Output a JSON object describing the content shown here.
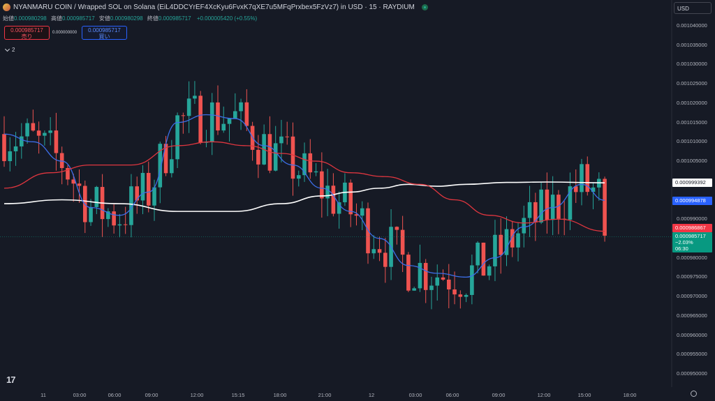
{
  "header": {
    "title": "NYANMARU COIN / Wrapped SOL on Solana (EiL4DDCYrEF4XcKyu6FvxK7qXE7u5MFqPrxbex5FzVz7) in USD · 15 · RAYDIUM",
    "ohlc": {
      "open_label": "始値",
      "open": "0.000980298",
      "high_label": "高値",
      "high": "0.000985717",
      "low_label": "安値",
      "low": "0.000980298",
      "close_label": "終値",
      "close": "0.000985717",
      "change": "+0.000005420 (+0.55%)"
    }
  },
  "trade": {
    "sell_price": "0.000985717",
    "sell_label": "売り",
    "spread": "0.000000000",
    "buy_price": "0.000985717",
    "buy_label": "買い"
  },
  "indicators_toggle": {
    "count": "2"
  },
  "currency": "USD",
  "price_tags": {
    "white": "0.000999392",
    "blue": "0.000994878",
    "red": "0.000986867",
    "last_price": "0.000985717",
    "last_change": "−2.03%",
    "countdown": "06:30"
  },
  "colors": {
    "up": "#26a69a",
    "down": "#ef5350",
    "ma_white": "#ffffff",
    "ma_blue": "#3d6ee8",
    "ma_red": "#e0363f"
  },
  "chart_data": {
    "type": "line",
    "subtype": "candlestick",
    "ylim": [
      0.00095,
      0.001043
    ],
    "y_ticks": [
      "0.001040000",
      "0.001035000",
      "0.001030000",
      "0.001025000",
      "0.001020000",
      "0.001015000",
      "0.001010000",
      "0.001005000",
      "0.000999392",
      "0.000994878",
      "0.000990000",
      "0.000986867",
      "0.000985717",
      "0.000980000",
      "0.000975000",
      "0.000970000",
      "0.000965000",
      "0.000960000",
      "0.000955000",
      "0.000950000"
    ],
    "x_ticks": [
      "11",
      "03:00",
      "06:00",
      "09:00",
      "12:00",
      "15:15",
      "18:00",
      "21:00",
      "12",
      "03:00",
      "06:00",
      "09:00",
      "12:00",
      "15:00",
      "18:00"
    ],
    "series": [
      {
        "name": "",
        "color": "#ffffff",
        "x": [
          0,
          10,
          20,
          30,
          40,
          48,
          55,
          60,
          65,
          70,
          75,
          80,
          87,
          94,
          104
        ],
        "values": [
          0.000994,
          0.000995,
          0.000994,
          0.000992,
          0.000992,
          0.000994,
          0.000996,
          0.000997,
          0.000998,
          0.000999,
          0.0009985,
          0.000999,
          0.0009995,
          0.0009996,
          0.000999392
        ]
      },
      {
        "name": "",
        "color": "#3d6ee8",
        "x": [
          0,
          5,
          10,
          15,
          20,
          25,
          30,
          35,
          40,
          45,
          50,
          55,
          60,
          65,
          70,
          75,
          80,
          85,
          90,
          95,
          100,
          104
        ],
        "values": [
          0.001012,
          0.00101,
          0.001005,
          0.000993,
          0.000991,
          0.000997,
          0.001015,
          0.001017,
          0.001016,
          0.001009,
          0.001004,
          0.000998,
          0.000992,
          0.000985,
          0.000978,
          0.000976,
          0.000975,
          0.00098,
          0.000988,
          0.000993,
          0.000999,
          0.000994878
        ]
      },
      {
        "name": "",
        "color": "#e0363f",
        "x": [
          0,
          8,
          15,
          22,
          30,
          36,
          42,
          48,
          54,
          60,
          66,
          72,
          78,
          84,
          90,
          96,
          104
        ],
        "values": [
          0.000998,
          0.001002,
          0.001004,
          0.001004,
          0.001009,
          0.00101,
          0.001009,
          0.001007,
          0.001005,
          0.001002,
          0.001001,
          0.000999,
          0.000995,
          0.000991,
          0.000989,
          0.00099,
          0.000986867
        ]
      }
    ]
  }
}
